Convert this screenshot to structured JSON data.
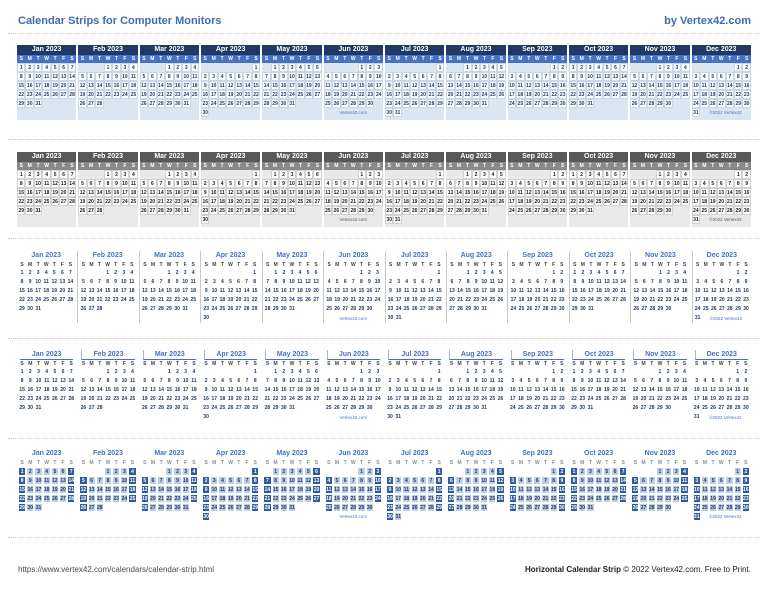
{
  "header": {
    "title": "Calendar Strips for Computer Monitors",
    "byline": "by Vertex42.com"
  },
  "calendar": {
    "day_letters": [
      "S",
      "M",
      "T",
      "W",
      "T",
      "F",
      "S"
    ],
    "months": [
      {
        "label": "Jan 2023",
        "start": 0,
        "days": 31
      },
      {
        "label": "Feb 2023",
        "start": 3,
        "days": 28
      },
      {
        "label": "Mar 2023",
        "start": 3,
        "days": 31
      },
      {
        "label": "Apr 2023",
        "start": 6,
        "days": 30
      },
      {
        "label": "May 2023",
        "start": 1,
        "days": 31
      },
      {
        "label": "Jun 2023",
        "start": 4,
        "days": 30
      },
      {
        "label": "Jul 2023",
        "start": 6,
        "days": 31
      },
      {
        "label": "Aug 2023",
        "start": 2,
        "days": 31
      },
      {
        "label": "Sep 2023",
        "start": 5,
        "days": 30
      },
      {
        "label": "Oct 2023",
        "start": 0,
        "days": 31
      },
      {
        "label": "Nov 2023",
        "start": 3,
        "days": 30
      },
      {
        "label": "Dec 2023",
        "start": 5,
        "days": 31
      }
    ],
    "branding": {
      "site": "Vertex42.com",
      "copyright": "©2022 Vertex42"
    },
    "site_month_index": 5,
    "copyright_month_index": 11
  },
  "strips": [
    {
      "name": "navy-banded"
    },
    {
      "name": "gray-banded"
    },
    {
      "name": "plain-divided"
    },
    {
      "name": "underlined-titles"
    },
    {
      "name": "blue-filled-weekends"
    }
  ],
  "colors": {
    "accent_blue": "#4472C4",
    "navy_header": "#1F3864",
    "weekend_fill": "#2E5C9E",
    "weekday_fill": "#BCCFE8"
  },
  "footer": {
    "url": "https://www.vertex42.com/calendars/calendar-strip.html",
    "credit_bold": "Horizontal Calendar Strip",
    "credit_rest": " © 2022 Vertex42.com. Free to Print."
  }
}
